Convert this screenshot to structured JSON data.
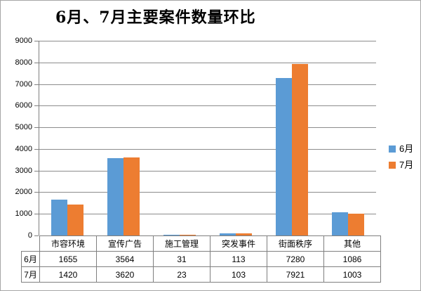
{
  "title": "6月、7月主要案件数量环比",
  "colors": {
    "series1": "#5B9BD5",
    "series2": "#ED7D31",
    "gridline": "#8c8c8c",
    "axis": "#7f7f7f",
    "window_border": "#a6a6a6",
    "text": "#000000"
  },
  "legend": {
    "items": [
      {
        "label": "6月",
        "color": "#5B9BD5"
      },
      {
        "label": "7月",
        "color": "#ED7D31"
      }
    ]
  },
  "chart_data": {
    "type": "bar",
    "title": "6月、7月主要案件数量环比",
    "categories": [
      "市容环境",
      "宣传广告",
      "施工管理",
      "突发事件",
      "街面秩序",
      "其他"
    ],
    "series": [
      {
        "name": "6月",
        "color": "#5B9BD5",
        "values": [
          1655,
          3564,
          31,
          113,
          7280,
          1086
        ]
      },
      {
        "name": "7月",
        "color": "#ED7D31",
        "values": [
          1420,
          3620,
          23,
          103,
          7921,
          1003
        ]
      }
    ],
    "xlabel": "",
    "ylabel": "",
    "ylim": [
      0,
      9000
    ],
    "ytick_interval": 1000,
    "ytick_labels": [
      "0",
      "1000",
      "2000",
      "3000",
      "4000",
      "5000",
      "6000",
      "7000",
      "8000",
      "9000"
    ],
    "grid": true,
    "legend_position": "right",
    "data_table_shown": true
  }
}
